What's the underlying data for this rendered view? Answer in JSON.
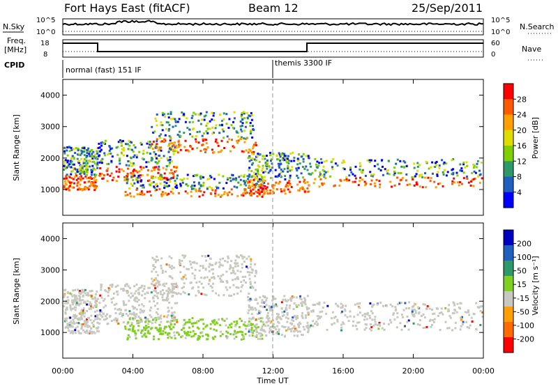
{
  "header": {
    "station": "Fort Hays East (fitACF)",
    "beam": "Beam 12",
    "date": "25/Sep/2011"
  },
  "status_panels": {
    "nsky_label": "N.Sky",
    "nsky_ticks": [
      "10^5",
      "10^0"
    ],
    "nsearch_label": "N.Search",
    "nsearch_ticks": [
      "10^5",
      "10^0"
    ],
    "freq_label_line1": "Freq.",
    "freq_label_line2": "[MHz]",
    "freq_ticks": [
      "18",
      "8"
    ],
    "nave_label": "Nave",
    "nave_ticks": [
      "60",
      "0"
    ],
    "cpid_label": "CPID",
    "cpid_segments": [
      "normal (fast) 151 IF",
      "themis 3300 IF"
    ]
  },
  "chart_data": [
    {
      "type": "heatmap",
      "panel": "power",
      "ylabel": "Slant Range [km]",
      "ylim": [
        180,
        4500
      ],
      "yticks": [
        "1000",
        "2000",
        "3000",
        "4000"
      ],
      "xlim": [
        0,
        24
      ],
      "colorbar_label": "Power [dB]",
      "colorbar_ticks": [
        "28",
        "24",
        "20",
        "16",
        "12",
        "8",
        "4"
      ],
      "colorbar_colors": [
        "#ff0000",
        "#ff5a00",
        "#ffa000",
        "#e0dc00",
        "#7fd000",
        "#2e9a6a",
        "#1f5fbd",
        "#0000ff"
      ],
      "bands": [
        {
          "x": [
            0,
            2
          ],
          "y": [
            1000,
            2400
          ]
        },
        {
          "x": [
            2,
            6.5
          ],
          "y": [
            1300,
            2600
          ]
        },
        {
          "x": [
            3.5,
            11.5
          ],
          "y": [
            800,
            1500
          ]
        },
        {
          "x": [
            5,
            11
          ],
          "y": [
            2200,
            3500
          ]
        },
        {
          "x": [
            10.5,
            14
          ],
          "y": [
            900,
            2200
          ]
        },
        {
          "x": [
            14,
            24
          ],
          "y": [
            1100,
            2000
          ]
        }
      ]
    },
    {
      "type": "heatmap",
      "panel": "velocity",
      "ylabel": "Slant Range [km]",
      "ylim": [
        180,
        4500
      ],
      "yticks": [
        "1000",
        "2000",
        "3000",
        "4000"
      ],
      "xlabel": "Time UT",
      "xlim": [
        0,
        24
      ],
      "xticks": [
        "00:00",
        "04:00",
        "08:00",
        "12:00",
        "16:00",
        "20:00",
        "00:00"
      ],
      "colorbar_label": "Velocity [m s⁻¹]",
      "colorbar_ticks": [
        "200",
        "100",
        "50",
        "15",
        "-15",
        "-50",
        "-100",
        "-200"
      ],
      "colorbar_colors": [
        "#0000c0",
        "#1f5fbd",
        "#2e9a6a",
        "#7fd020",
        "#c8c8c0",
        "#ffa000",
        "#ff6a00",
        "#ff0000"
      ]
    }
  ]
}
